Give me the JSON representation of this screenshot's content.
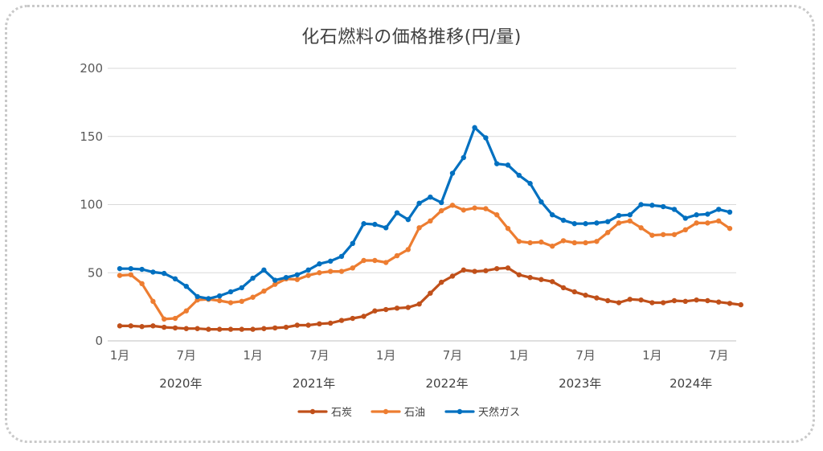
{
  "chart_data": {
    "type": "line",
    "title": "化石燃料の価格推移(円/量)",
    "ylim": [
      0,
      200
    ],
    "y_ticks": [
      "0",
      "50",
      "100",
      "150",
      "200"
    ],
    "x_month_ticks": [
      "1月",
      "7月",
      "1月",
      "7月",
      "1月",
      "7月",
      "1月",
      "7月",
      "1月",
      "7月"
    ],
    "x_year_labels": [
      "2020年",
      "2021年",
      "2022年",
      "2023年",
      "2024年"
    ],
    "grid": "horizontal",
    "legend_position": "bottom",
    "series": [
      {
        "name": "石炭",
        "color": "#c0501a",
        "values": [
          11,
          11,
          10.5,
          11,
          10,
          9.5,
          9,
          9,
          8.5,
          8.5,
          8.5,
          8.5,
          8.5,
          9,
          9.5,
          10,
          11.5,
          11.5,
          12.5,
          13,
          15,
          16.5,
          18,
          22,
          23,
          24,
          24.5,
          27,
          35,
          43,
          47.5,
          52,
          51,
          51.5,
          53,
          53.5,
          48.5,
          46.5,
          45,
          43.5,
          39,
          36,
          33.5,
          31.5,
          29.5,
          28,
          30.5,
          30,
          28,
          28,
          29.5,
          29,
          30,
          29.5,
          28.5,
          27.5,
          26.5
        ]
      },
      {
        "name": "石油",
        "color": "#ed7d31",
        "values": [
          48,
          48.5,
          42,
          29,
          16,
          16.5,
          22,
          30,
          30.5,
          29.5,
          28,
          29,
          32,
          36.5,
          41.5,
          45.5,
          45,
          48,
          50,
          51,
          51,
          53.5,
          59,
          59,
          57.5,
          62.5,
          67,
          83,
          88,
          95.5,
          99.5,
          96,
          97.5,
          97,
          92.5,
          82.5,
          73,
          72,
          72.5,
          69.5,
          73.5,
          72,
          72,
          73,
          79.5,
          86.5,
          88,
          83,
          77.5,
          78,
          78,
          81.5,
          86.5,
          86.5,
          88,
          82.5
        ]
      },
      {
        "name": "天然ガス",
        "color": "#0070c0",
        "values": [
          53,
          53,
          52.5,
          50.5,
          49.5,
          45.5,
          40,
          32.5,
          31,
          33,
          36,
          39,
          46,
          52,
          44.5,
          46.5,
          48.5,
          52,
          56.5,
          58.5,
          62,
          71.5,
          86,
          85.5,
          83,
          94,
          89,
          101,
          105.5,
          101.5,
          123,
          134.5,
          156.5,
          149,
          130,
          129,
          121.5,
          115.5,
          102,
          92.5,
          88.5,
          86,
          86,
          86.5,
          87.5,
          92,
          92.5,
          100,
          99.5,
          98.5,
          96.5,
          90,
          92.5,
          93,
          96.5,
          94.5
        ]
      }
    ]
  }
}
